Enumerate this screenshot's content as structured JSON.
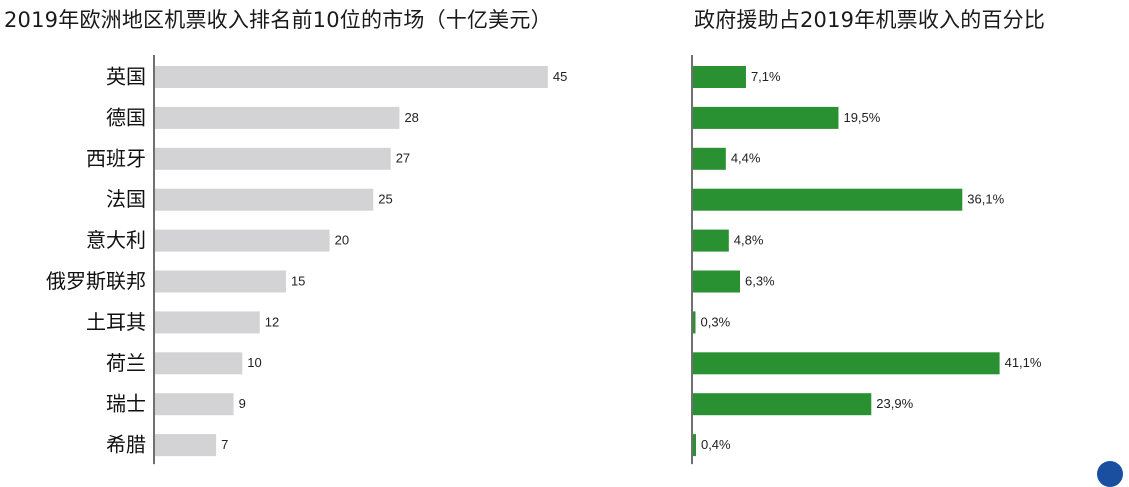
{
  "chart_data": [
    {
      "type": "bar",
      "orientation": "horizontal",
      "title": "2019年欧洲地区机票收入排名前10位的市场（十亿美元）",
      "categories": [
        "英国",
        "德国",
        "西班牙",
        "法国",
        "意大利",
        "俄罗斯联邦",
        "土耳其",
        "荷兰",
        "瑞士",
        "希腊"
      ],
      "values": [
        45,
        28,
        27,
        25,
        20,
        15,
        12,
        10,
        9,
        7
      ],
      "value_labels": [
        "45",
        "28",
        "27",
        "25",
        "20",
        "15",
        "12",
        "10",
        "9",
        "7"
      ],
      "bar_color": "#d3d3d5",
      "grid": false,
      "legend": "none"
    },
    {
      "type": "bar",
      "orientation": "horizontal",
      "title": "政府援助占2019年机票收入的百分比",
      "categories": [
        "英国",
        "德国",
        "西班牙",
        "法国",
        "意大利",
        "俄罗斯联邦",
        "土耳其",
        "荷兰",
        "瑞士",
        "希腊"
      ],
      "values": [
        7.1,
        19.5,
        4.4,
        36.1,
        4.8,
        6.3,
        0.3,
        41.1,
        23.9,
        0.4
      ],
      "value_labels": [
        "7,1%",
        "19,5%",
        "4,4%",
        "36,1%",
        "4,8%",
        "6,3%",
        "0,3%",
        "41,1%",
        "23,9%",
        "0,4%"
      ],
      "bar_color": "#2a9132",
      "grid": false,
      "legend": "none"
    }
  ],
  "logo_icon": "globe-icon"
}
